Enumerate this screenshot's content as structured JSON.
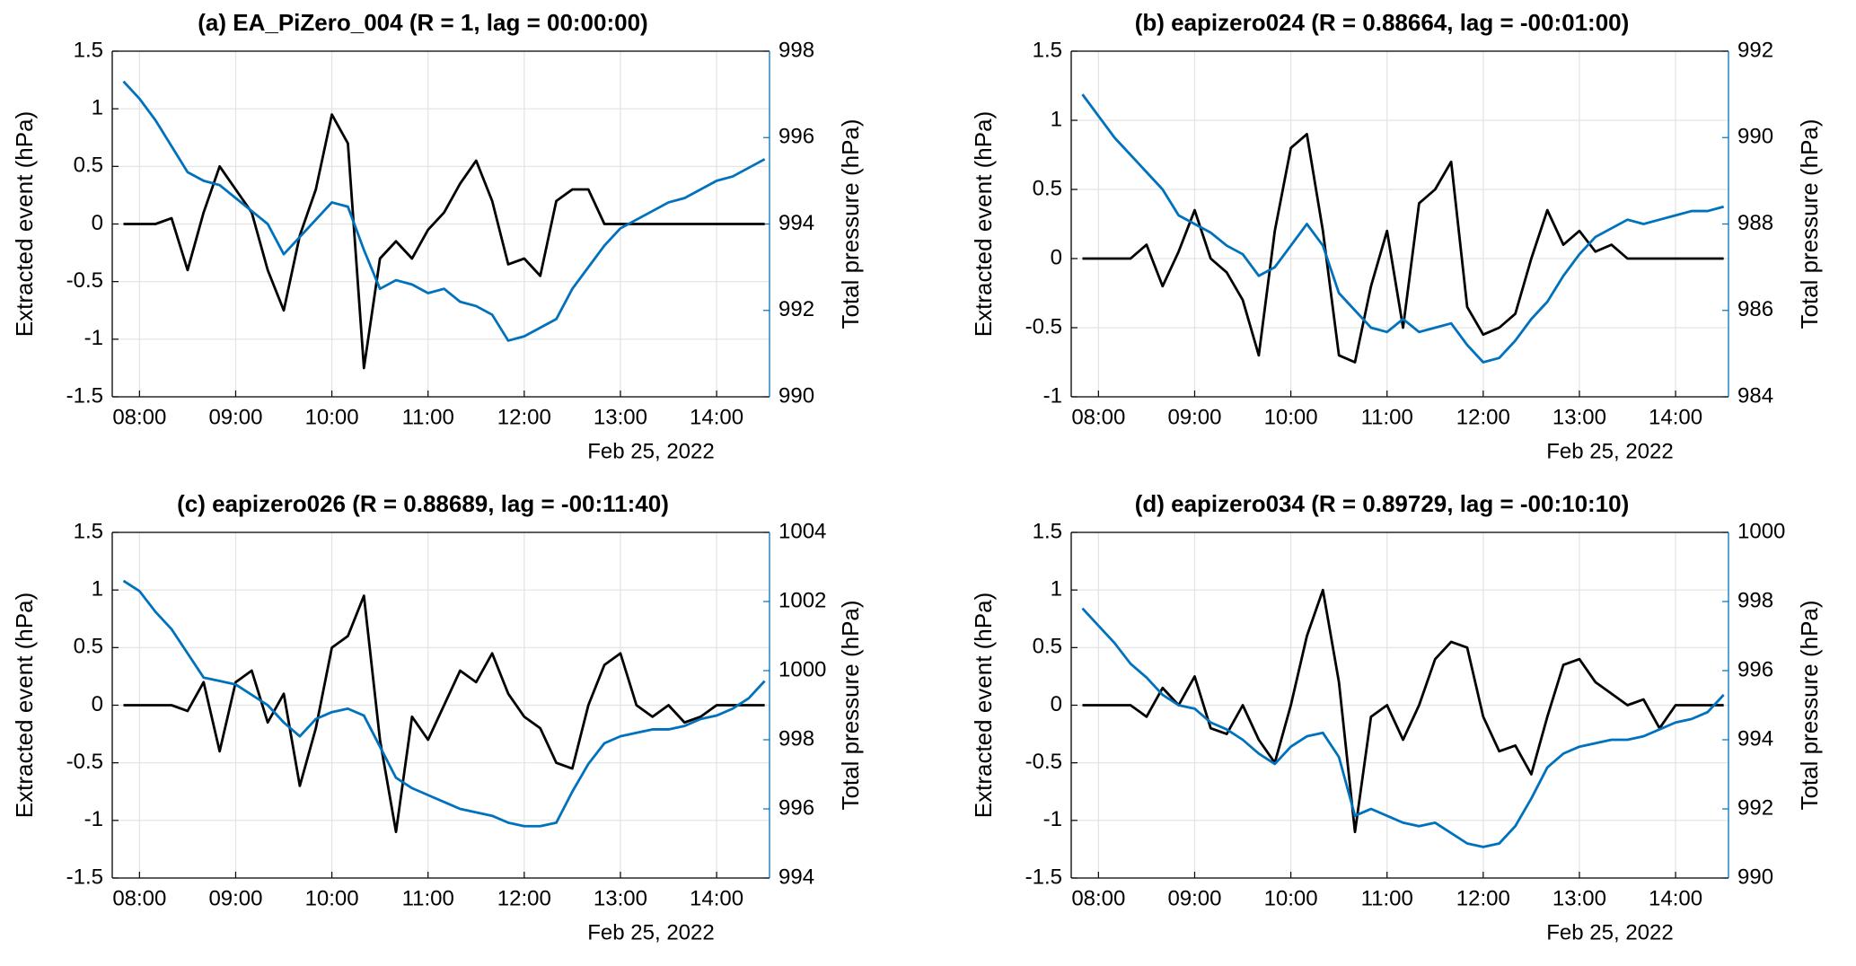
{
  "chart_data": [
    {
      "type": "line",
      "title": "(a) EA_PiZero_004 (R = 1, lag = 00:00:00)",
      "ylabel": "Extracted event (hPa)",
      "y2label": "Total pressure (hPa)",
      "xlabel": "Feb 25, 2022",
      "x": [
        "07:50",
        "08:00",
        "08:10",
        "08:20",
        "08:30",
        "08:40",
        "08:50",
        "09:00",
        "09:10",
        "09:20",
        "09:30",
        "09:40",
        "09:50",
        "10:00",
        "10:10",
        "10:20",
        "10:30",
        "10:40",
        "10:50",
        "11:00",
        "11:10",
        "11:20",
        "11:30",
        "11:40",
        "11:50",
        "12:00",
        "12:10",
        "12:20",
        "12:30",
        "12:40",
        "12:50",
        "13:00",
        "13:10",
        "13:20",
        "13:30",
        "13:40",
        "13:50",
        "14:00",
        "14:10",
        "14:20",
        "14:30"
      ],
      "xlim": [
        "07:43",
        "14:33"
      ],
      "xticks": [
        "08:00",
        "09:00",
        "10:00",
        "11:00",
        "12:00",
        "13:00",
        "14:00"
      ],
      "ylim": [
        -1.5,
        1.5
      ],
      "yticks": [
        -1.5,
        -1,
        -0.5,
        0,
        0.5,
        1,
        1.5
      ],
      "y2lim": [
        990,
        998
      ],
      "y2ticks": [
        990,
        992,
        994,
        996,
        998
      ],
      "grid": true,
      "series": [
        {
          "color": "#000000",
          "values": [
            0,
            0,
            0,
            0.05,
            -0.4,
            0.1,
            0.5,
            0.3,
            0.1,
            -0.4,
            -0.75,
            -0.1,
            0.3,
            0.95,
            0.7,
            -1.25,
            -0.3,
            -0.15,
            -0.3,
            -0.05,
            0.1,
            0.35,
            0.55,
            0.2,
            -0.35,
            -0.3,
            -0.45,
            0.2,
            0.3,
            0.3,
            0,
            0,
            0,
            0,
            0,
            0,
            0,
            0,
            0,
            0,
            0
          ]
        },
        {
          "color": "#0072bd",
          "axis": "y2",
          "values": [
            997.3,
            996.9,
            996.4,
            995.8,
            995.2,
            995.0,
            994.9,
            994.6,
            994.3,
            994.0,
            993.3,
            993.7,
            994.1,
            994.5,
            994.4,
            993.4,
            992.5,
            992.7,
            992.6,
            992.4,
            992.5,
            992.2,
            992.1,
            991.9,
            991.3,
            991.4,
            991.6,
            991.8,
            992.5,
            993.0,
            993.5,
            993.9,
            994.1,
            994.3,
            994.5,
            994.6,
            994.8,
            995.0,
            995.1,
            995.3,
            995.5
          ]
        }
      ]
    },
    {
      "type": "line",
      "title": "(b) eapizero024 (R = 0.88664, lag = -00:01:00)",
      "ylabel": "Extracted event (hPa)",
      "y2label": "Total pressure (hPa)",
      "xlabel": "Feb 25, 2022",
      "x": [
        "07:50",
        "08:00",
        "08:10",
        "08:20",
        "08:30",
        "08:40",
        "08:50",
        "09:00",
        "09:10",
        "09:20",
        "09:30",
        "09:40",
        "09:50",
        "10:00",
        "10:10",
        "10:20",
        "10:30",
        "10:40",
        "10:50",
        "11:00",
        "11:10",
        "11:20",
        "11:30",
        "11:40",
        "11:50",
        "12:00",
        "12:10",
        "12:20",
        "12:30",
        "12:40",
        "12:50",
        "13:00",
        "13:10",
        "13:20",
        "13:30",
        "13:40",
        "13:50",
        "14:00",
        "14:10",
        "14:20",
        "14:30"
      ],
      "xlim": [
        "07:43",
        "14:33"
      ],
      "xticks": [
        "08:00",
        "09:00",
        "10:00",
        "11:00",
        "12:00",
        "13:00",
        "14:00"
      ],
      "ylim": [
        -1,
        1.5
      ],
      "yticks": [
        -1,
        -0.5,
        0,
        0.5,
        1,
        1.5
      ],
      "y2lim": [
        984,
        992
      ],
      "y2ticks": [
        984,
        986,
        988,
        990,
        992
      ],
      "grid": true,
      "series": [
        {
          "color": "#000000",
          "values": [
            0,
            0,
            0,
            0,
            0.1,
            -0.2,
            0.05,
            0.35,
            0,
            -0.1,
            -0.3,
            -0.7,
            0.2,
            0.8,
            0.9,
            0.2,
            -0.7,
            -0.75,
            -0.2,
            0.2,
            -0.5,
            0.4,
            0.5,
            0.7,
            -0.35,
            -0.55,
            -0.5,
            -0.4,
            0,
            0.35,
            0.1,
            0.2,
            0.05,
            0.1,
            0,
            0,
            0,
            0,
            0,
            0,
            0
          ]
        },
        {
          "color": "#0072bd",
          "axis": "y2",
          "values": [
            991.0,
            990.5,
            990.0,
            989.6,
            989.2,
            988.8,
            988.2,
            988.0,
            987.8,
            987.5,
            987.3,
            986.8,
            987.0,
            987.5,
            988.0,
            987.5,
            986.4,
            986.0,
            985.6,
            985.5,
            985.8,
            985.5,
            985.6,
            985.7,
            985.2,
            984.8,
            984.9,
            985.3,
            985.8,
            986.2,
            986.8,
            987.3,
            987.7,
            987.9,
            988.1,
            988.0,
            988.1,
            988.2,
            988.3,
            988.3,
            988.4
          ]
        }
      ]
    },
    {
      "type": "line",
      "title": "(c) eapizero026 (R = 0.88689, lag = -00:11:40)",
      "ylabel": "Extracted event (hPa)",
      "y2label": "Total pressure (hPa)",
      "xlabel": "Feb 25, 2022",
      "x": [
        "07:50",
        "08:00",
        "08:10",
        "08:20",
        "08:30",
        "08:40",
        "08:50",
        "09:00",
        "09:10",
        "09:20",
        "09:30",
        "09:40",
        "09:50",
        "10:00",
        "10:10",
        "10:20",
        "10:30",
        "10:40",
        "10:50",
        "11:00",
        "11:10",
        "11:20",
        "11:30",
        "11:40",
        "11:50",
        "12:00",
        "12:10",
        "12:20",
        "12:30",
        "12:40",
        "12:50",
        "13:00",
        "13:10",
        "13:20",
        "13:30",
        "13:40",
        "13:50",
        "14:00",
        "14:10",
        "14:20",
        "14:30"
      ],
      "xlim": [
        "07:43",
        "14:33"
      ],
      "xticks": [
        "08:00",
        "09:00",
        "10:00",
        "11:00",
        "12:00",
        "13:00",
        "14:00"
      ],
      "ylim": [
        -1.5,
        1.5
      ],
      "yticks": [
        -1.5,
        -1,
        -0.5,
        0,
        0.5,
        1,
        1.5
      ],
      "y2lim": [
        994,
        1004
      ],
      "y2ticks": [
        994,
        996,
        998,
        1000,
        1002,
        1004
      ],
      "grid": true,
      "series": [
        {
          "color": "#000000",
          "values": [
            0,
            0,
            0,
            0,
            -0.05,
            0.2,
            -0.4,
            0.2,
            0.3,
            -0.15,
            0.1,
            -0.7,
            -0.2,
            0.5,
            0.6,
            0.95,
            -0.3,
            -1.1,
            -0.1,
            -0.3,
            0,
            0.3,
            0.2,
            0.45,
            0.1,
            -0.1,
            -0.2,
            -0.5,
            -0.55,
            0,
            0.35,
            0.45,
            0,
            -0.1,
            0,
            -0.15,
            -0.1,
            0,
            0,
            0,
            0
          ]
        },
        {
          "color": "#0072bd",
          "axis": "y2",
          "values": [
            1002.6,
            1002.3,
            1001.7,
            1001.2,
            1000.5,
            999.8,
            999.7,
            999.6,
            999.3,
            999.0,
            998.5,
            998.1,
            998.6,
            998.8,
            998.9,
            998.7,
            997.8,
            996.9,
            996.6,
            996.4,
            996.2,
            996.0,
            995.9,
            995.8,
            995.6,
            995.5,
            995.5,
            995.6,
            996.5,
            997.3,
            997.9,
            998.1,
            998.2,
            998.3,
            998.3,
            998.4,
            998.6,
            998.7,
            998.9,
            999.2,
            999.7
          ]
        }
      ]
    },
    {
      "type": "line",
      "title": "(d) eapizero034 (R = 0.89729, lag = -00:10:10)",
      "ylabel": "Extracted event (hPa)",
      "y2label": "Total pressure (hPa)",
      "xlabel": "Feb 25, 2022",
      "x": [
        "07:50",
        "08:00",
        "08:10",
        "08:20",
        "08:30",
        "08:40",
        "08:50",
        "09:00",
        "09:10",
        "09:20",
        "09:30",
        "09:40",
        "09:50",
        "10:00",
        "10:10",
        "10:20",
        "10:30",
        "10:40",
        "10:50",
        "11:00",
        "11:10",
        "11:20",
        "11:30",
        "11:40",
        "11:50",
        "12:00",
        "12:10",
        "12:20",
        "12:30",
        "12:40",
        "12:50",
        "13:00",
        "13:10",
        "13:20",
        "13:30",
        "13:40",
        "13:50",
        "14:00",
        "14:10",
        "14:20",
        "14:30"
      ],
      "xlim": [
        "07:43",
        "14:33"
      ],
      "xticks": [
        "08:00",
        "09:00",
        "10:00",
        "11:00",
        "12:00",
        "13:00",
        "14:00"
      ],
      "ylim": [
        -1.5,
        1.5
      ],
      "yticks": [
        -1.5,
        -1,
        -0.5,
        0,
        0.5,
        1,
        1.5
      ],
      "y2lim": [
        990,
        1000
      ],
      "y2ticks": [
        990,
        992,
        994,
        996,
        998,
        1000
      ],
      "grid": true,
      "series": [
        {
          "color": "#000000",
          "values": [
            0,
            0,
            0,
            0,
            -0.1,
            0.15,
            0,
            0.25,
            -0.2,
            -0.25,
            0,
            -0.3,
            -0.5,
            0,
            0.6,
            1.0,
            0.2,
            -1.1,
            -0.1,
            0,
            -0.3,
            0,
            0.4,
            0.55,
            0.5,
            -0.1,
            -0.4,
            -0.35,
            -0.6,
            -0.1,
            0.35,
            0.4,
            0.2,
            0.1,
            0,
            0.05,
            -0.2,
            0,
            0,
            0,
            0
          ]
        },
        {
          "color": "#0072bd",
          "axis": "y2",
          "values": [
            997.8,
            997.3,
            996.8,
            996.2,
            995.8,
            995.3,
            995.0,
            994.9,
            994.5,
            994.3,
            994.0,
            993.6,
            993.3,
            993.8,
            994.1,
            994.2,
            993.5,
            991.8,
            992.0,
            991.8,
            991.6,
            991.5,
            991.6,
            991.3,
            991.0,
            990.9,
            991.0,
            991.5,
            992.3,
            993.2,
            993.6,
            993.8,
            993.9,
            994.0,
            994.0,
            994.1,
            994.3,
            994.5,
            994.6,
            994.8,
            995.3
          ]
        }
      ]
    }
  ]
}
